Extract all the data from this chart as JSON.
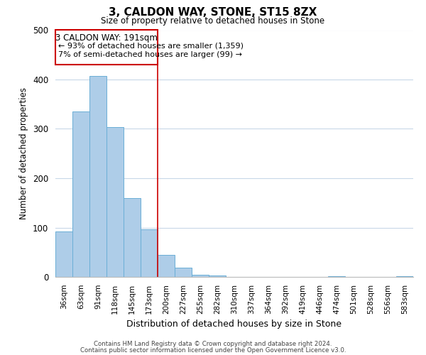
{
  "title": "3, CALDON WAY, STONE, ST15 8ZX",
  "subtitle": "Size of property relative to detached houses in Stone",
  "xlabel": "Distribution of detached houses by size in Stone",
  "ylabel": "Number of detached properties",
  "bar_labels": [
    "36sqm",
    "63sqm",
    "91sqm",
    "118sqm",
    "145sqm",
    "173sqm",
    "200sqm",
    "227sqm",
    "255sqm",
    "282sqm",
    "310sqm",
    "337sqm",
    "364sqm",
    "392sqm",
    "419sqm",
    "446sqm",
    "474sqm",
    "501sqm",
    "528sqm",
    "556sqm",
    "583sqm"
  ],
  "bar_values": [
    92,
    335,
    407,
    303,
    160,
    96,
    44,
    18,
    5,
    3,
    0,
    0,
    0,
    0,
    0,
    0,
    2,
    0,
    0,
    0,
    2
  ],
  "bar_color": "#aecde8",
  "bar_edgecolor": "#6aaed6",
  "property_label": "3 CALDON WAY: 191sqm",
  "annotation_line1": "← 93% of detached houses are smaller (1,359)",
  "annotation_line2": "7% of semi-detached houses are larger (99) →",
  "vline_color": "#cc0000",
  "vline_x_index": 5.5,
  "annotation_box_color": "#cc0000",
  "ylim": [
    0,
    500
  ],
  "footer1": "Contains HM Land Registry data © Crown copyright and database right 2024.",
  "footer2": "Contains public sector information licensed under the Open Government Licence v3.0.",
  "bg_color": "#ffffff",
  "grid_color": "#c8d8e8"
}
